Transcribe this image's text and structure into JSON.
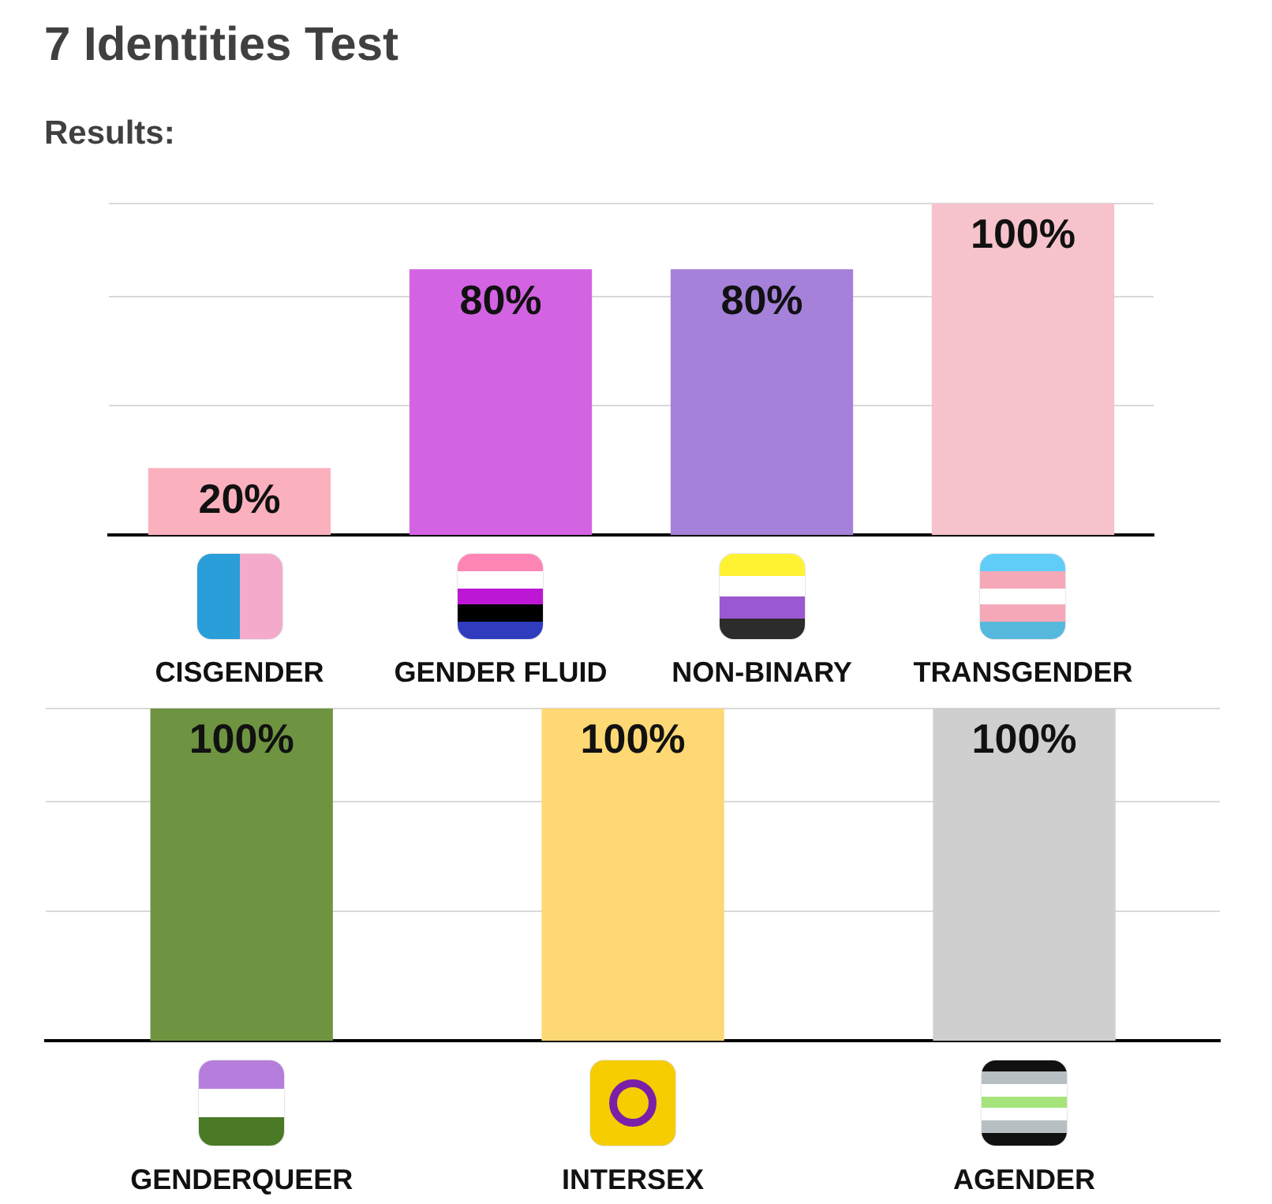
{
  "chart_data": [
    {
      "type": "bar",
      "title": "7 Identities Test",
      "subtitle": "Results:",
      "categories": [
        "CISGENDER",
        "GENDER FLUID",
        "NON-BINARY",
        "TRANSGENDER"
      ],
      "values": [
        20,
        80,
        80,
        100
      ],
      "colors": [
        "#fab0bd",
        "#d363e2",
        "#a581da",
        "#f6c2cb"
      ],
      "value_labels": [
        "20%",
        "80%",
        "80%",
        "100%"
      ],
      "ylim": [
        0,
        100
      ],
      "yticks": [
        {
          "value": 39,
          "label": null
        },
        {
          "value": 72,
          "label": null
        },
        {
          "value": 100,
          "label": null
        }
      ],
      "grid": "y",
      "tick_labels": "x"
    },
    {
      "type": "bar",
      "categories": [
        "GENDERQUEER",
        "INTERSEX",
        "AGENDER"
      ],
      "values": [
        100,
        100,
        100
      ],
      "colors": [
        "#6f9441",
        "#fdd874",
        "#cfcfcf"
      ],
      "value_labels": [
        "100%",
        "100%",
        "100%"
      ],
      "ylim": [
        0,
        100
      ],
      "yticks": [
        {
          "value": 39,
          "label": null
        },
        {
          "value": 72,
          "label": null
        },
        {
          "value": 100,
          "label": null
        }
      ],
      "grid": "y",
      "tick_labels": "x"
    }
  ]
}
